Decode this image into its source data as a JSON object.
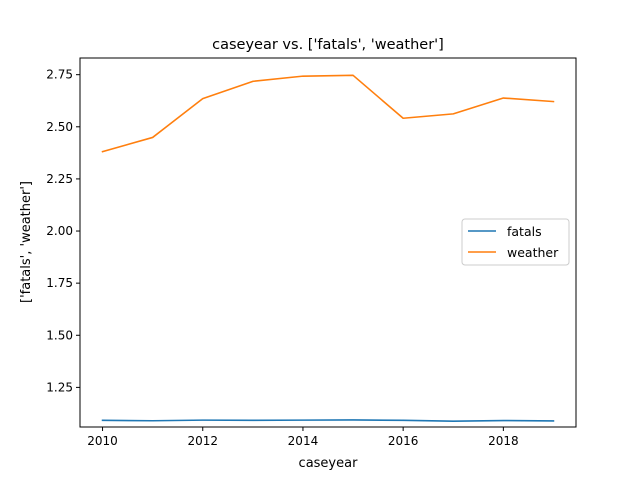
{
  "chart_data": {
    "type": "line",
    "title": "caseyear vs. ['fatals', 'weather']",
    "xlabel": "caseyear",
    "ylabel": "['fatals', 'weather']",
    "x": [
      2010,
      2011,
      2012,
      2013,
      2014,
      2015,
      2016,
      2017,
      2018,
      2019
    ],
    "series": [
      {
        "name": "fatals",
        "color": "#1f77b4",
        "values": [
          1.092,
          1.09,
          1.093,
          1.092,
          1.093,
          1.094,
          1.092,
          1.088,
          1.091,
          1.089
        ]
      },
      {
        "name": "weather",
        "color": "#ff7f0e",
        "values": [
          2.381,
          2.449,
          2.635,
          2.718,
          2.743,
          2.747,
          2.541,
          2.562,
          2.638,
          2.621
        ]
      }
    ],
    "xlim": [
      2009.55,
      2019.45
    ],
    "ylim": [
      1.06,
      2.83
    ],
    "xticks": [
      2010,
      2012,
      2014,
      2016,
      2018
    ],
    "xtick_labels": [
      "2010",
      "2012",
      "2014",
      "2016",
      "2018"
    ],
    "yticks": [
      1.25,
      1.5,
      1.75,
      2.0,
      2.25,
      2.5,
      2.75
    ],
    "ytick_labels": [
      "1.25",
      "1.50",
      "1.75",
      "2.00",
      "2.25",
      "2.50",
      "2.75"
    ],
    "grid": false,
    "legend_position": "center-right"
  }
}
